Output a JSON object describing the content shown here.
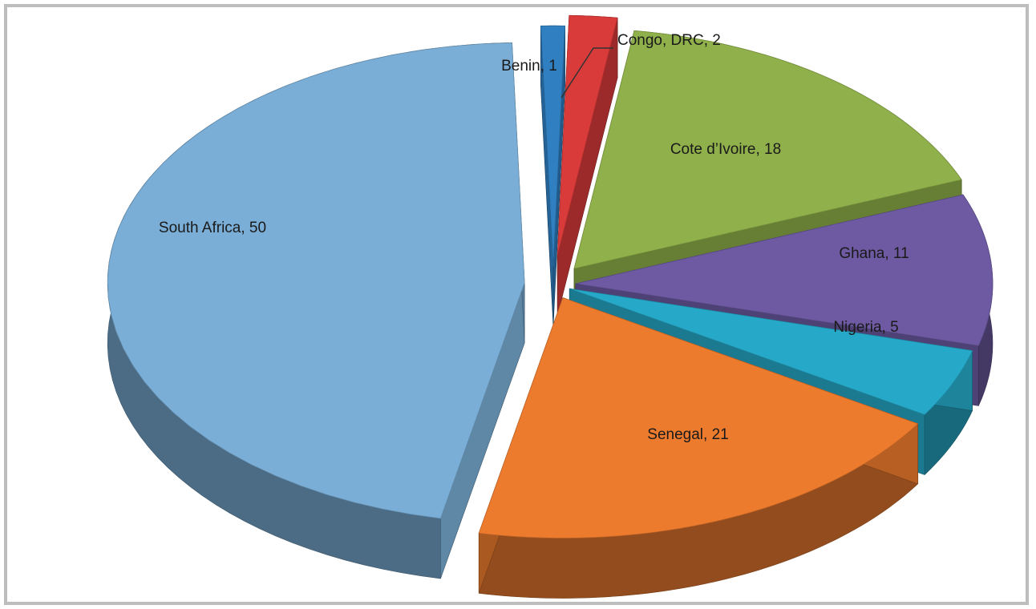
{
  "chart_data": {
    "type": "pie",
    "style": "3d-exploded",
    "title": "",
    "slices": [
      {
        "name": "Benin",
        "value": 1,
        "label": "Benin, 1",
        "color": "#2f7fc1"
      },
      {
        "name": "Congo, DRC",
        "value": 2,
        "label": "Congo, DRC, 2",
        "color": "#d93a3a"
      },
      {
        "name": "Cote d’Ivoire",
        "value": 18,
        "label": "Cote d’Ivoire, 18",
        "color": "#8fb04a"
      },
      {
        "name": "Ghana",
        "value": 11,
        "label": "Ghana, 11",
        "color": "#6d5aa3"
      },
      {
        "name": "Nigeria",
        "value": 5,
        "label": "Nigeria, 5",
        "color": "#26a9c8"
      },
      {
        "name": "Senegal",
        "value": 21,
        "label": "Senegal, 21",
        "color": "#ec7b2e"
      },
      {
        "name": "South Africa",
        "value": 50,
        "label": "South Africa, 50",
        "color": "#7aaed6"
      }
    ],
    "legend": "none",
    "data_labels": "category and value"
  }
}
